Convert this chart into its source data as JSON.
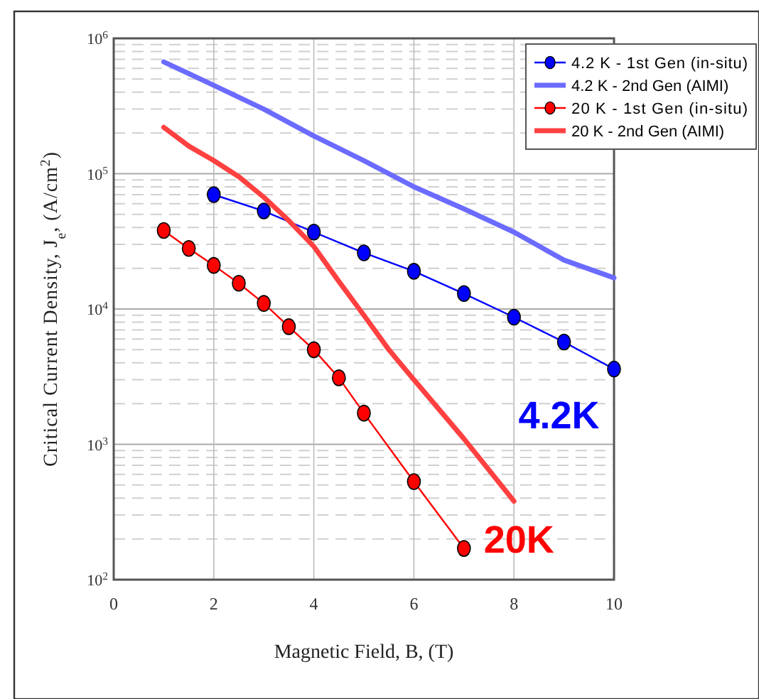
{
  "chart_data": {
    "type": "line",
    "xlabel": "Magnetic Field, B, (T)",
    "ylabel": "Critical Current Density, J$_{e}$, (A/cm$^{2}$)",
    "log": "y",
    "grid": true,
    "legend": "top right",
    "xlim": [
      0,
      10
    ],
    "xticks": [
      0,
      2,
      4,
      6,
      8,
      10
    ],
    "ylim": [
      100,
      1000000
    ],
    "yticks": [
      {
        "value": 100,
        "label": "10$^{2}$"
      },
      {
        "value": 1000,
        "label": "10$^{3}$"
      },
      {
        "value": 10000,
        "label": "10$^{4}$"
      },
      {
        "value": 100000,
        "label": "10$^{5}$"
      },
      {
        "value": 1000000,
        "label": "10$^{6}$"
      }
    ],
    "series": [
      {
        "name": "4.2 K - 1st Gen (in-situ)",
        "color": "#0000ff",
        "marker": "circle",
        "x": [
          2,
          3,
          4,
          5,
          6,
          7,
          8,
          9,
          10
        ],
        "values": [
          70000,
          53000,
          37000,
          26000,
          19000,
          13000,
          8700,
          5700,
          3600
        ]
      },
      {
        "name": "4.2 K - 2nd Gen (AIMI)",
        "color": "#6b6bff",
        "marker": "none",
        "x": [
          1,
          2,
          3,
          4,
          5,
          6,
          7,
          8,
          9,
          10
        ],
        "values": [
          670000,
          450000,
          300000,
          190000,
          125000,
          80000,
          55000,
          37000,
          23000,
          17000
        ]
      },
      {
        "name": "20 K - 1st Gen (in-situ)",
        "color": "#ff0000",
        "marker": "circle",
        "x": [
          1,
          1.5,
          2,
          2.5,
          3,
          3.5,
          4,
          4.5,
          5,
          6,
          7
        ],
        "values": [
          38000,
          28000,
          21000,
          15500,
          11000,
          7400,
          5000,
          3100,
          1700,
          530,
          170
        ]
      },
      {
        "name": "20 K - 2nd Gen (AIMI)",
        "color": "#ff4040",
        "marker": "none",
        "x": [
          1,
          1.5,
          2,
          2.5,
          3,
          3.5,
          4,
          4.5,
          5,
          5.5,
          6,
          7,
          8
        ],
        "values": [
          220000,
          160000,
          125000,
          95000,
          67000,
          45000,
          29000,
          16000,
          9000,
          5000,
          3000,
          1100,
          380
        ]
      }
    ],
    "annotations": [
      "4.2K",
      "20K"
    ]
  }
}
